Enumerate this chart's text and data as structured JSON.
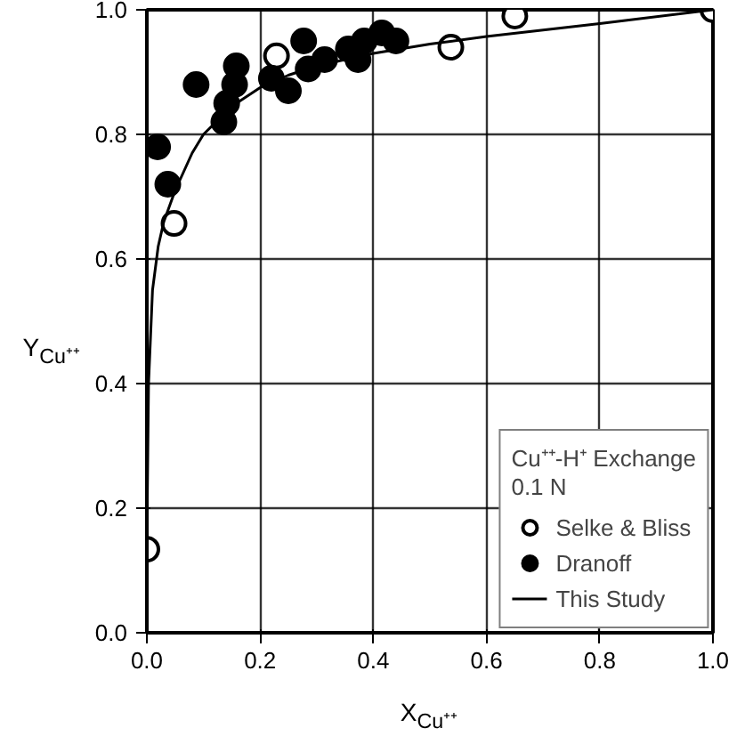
{
  "chart_data": {
    "type": "scatter",
    "xlabel": "X$_{Cu⁺⁺}$",
    "ylabel": "Y$_{Cu⁺⁺}$",
    "legend_title": "Cu⁺⁺-H⁺ Exchange\n0.1 N",
    "xlim": [
      0,
      1
    ],
    "ylim": [
      0,
      1
    ],
    "xticks": [
      {
        "value": 0,
        "label": "0.0"
      },
      0.2,
      0.4,
      0.6,
      0.8,
      {
        "value": 1,
        "label": "1.0"
      }
    ],
    "yticks": [
      {
        "value": 0,
        "label": "0.0"
      },
      0.2,
      0.4,
      0.6,
      0.8,
      {
        "value": 1,
        "label": "1.0"
      }
    ],
    "grid": true,
    "legend": "bottom right",
    "series": [
      {
        "name": "Selke & Bliss",
        "type": "scatter",
        "marker": "circle",
        "color": "#ffffff",
        "x": [
          0.0,
          0.048,
          0.229,
          0.537,
          0.65,
          1.0
        ],
        "values": [
          0.134,
          0.657,
          0.926,
          0.94,
          0.99,
          1.0
        ]
      },
      {
        "name": "Dranoff",
        "type": "scatter",
        "marker": "circle",
        "color": "#000000",
        "x": [
          0.019,
          0.037,
          0.087,
          0.136,
          0.141,
          0.155,
          0.158,
          0.22,
          0.25,
          0.277,
          0.285,
          0.314,
          0.356,
          0.373,
          0.384,
          0.415,
          0.44
        ],
        "values": [
          0.78,
          0.72,
          0.88,
          0.82,
          0.85,
          0.88,
          0.91,
          0.89,
          0.87,
          0.95,
          0.905,
          0.92,
          0.937,
          0.92,
          0.95,
          0.963,
          0.95
        ]
      },
      {
        "name": "This Study",
        "type": "line",
        "marker": "none",
        "color": "#000000",
        "x": [
          0.0,
          0.003,
          0.01,
          0.02,
          0.03,
          0.05,
          0.08,
          0.1,
          0.15,
          0.2,
          0.25,
          0.3,
          0.4,
          0.5,
          0.6,
          0.8,
          1.0
        ],
        "values": [
          0.15,
          0.4,
          0.55,
          0.62,
          0.66,
          0.71,
          0.77,
          0.8,
          0.845,
          0.875,
          0.895,
          0.91,
          0.93,
          0.945,
          0.957,
          0.978,
          1.0
        ]
      }
    ]
  }
}
